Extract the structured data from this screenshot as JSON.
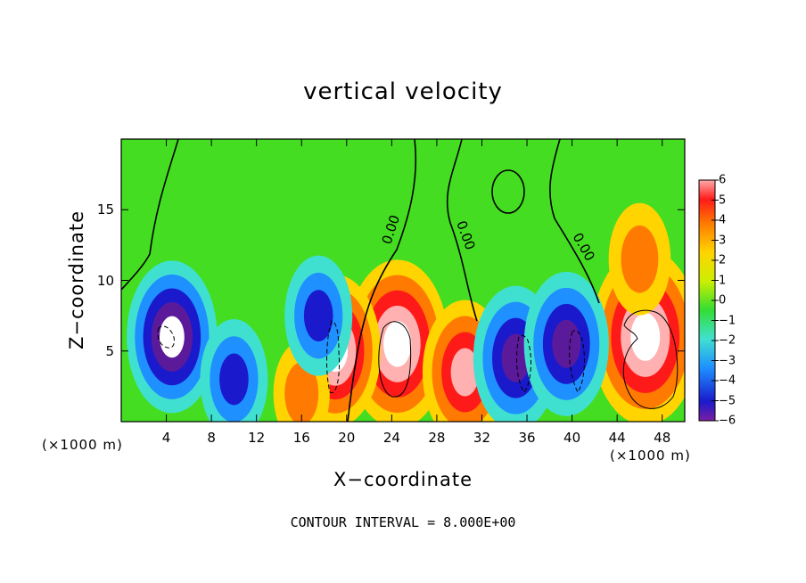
{
  "chart_data": {
    "type": "heatmap",
    "title": "vertical velocity",
    "xlabel": "X−coordinate",
    "ylabel": "Z−coordinate",
    "x_unit": "(×1000 m)",
    "xlim": [
      0,
      50
    ],
    "ylim": [
      0,
      20
    ],
    "x_ticks": [
      "4",
      "8",
      "12",
      "16",
      "20",
      "24",
      "28",
      "32",
      "36",
      "40",
      "44",
      "48"
    ],
    "y_ticks": [
      "5",
      "10",
      "15"
    ],
    "colorbar": {
      "ticks": [
        "6",
        "5",
        "4",
        "3",
        "2",
        "1",
        "0",
        "−1",
        "−2",
        "−3",
        "−4",
        "−5",
        "−6"
      ],
      "range": [
        -6,
        6
      ]
    },
    "contour_label": "0.00",
    "contour_interval_text": "CONTOUR INTERVAL = 8.000E+00",
    "features": [
      {
        "x": 24.5,
        "z": 5.5,
        "w": 11
      },
      {
        "x": 19.0,
        "z": 5.0,
        "w": 9
      },
      {
        "x": 30.5,
        "z": 3.5,
        "w": 8
      },
      {
        "x": 46.5,
        "z": 6.0,
        "w": 12
      },
      {
        "x": 46.0,
        "z": 11.5,
        "w": 4
      },
      {
        "x": 4.5,
        "z": 6.0,
        "w": -9
      },
      {
        "x": 35.0,
        "z": 4.5,
        "w": -8
      },
      {
        "x": 39.5,
        "z": 5.5,
        "w": -8
      },
      {
        "x": 10.0,
        "z": 3.0,
        "w": -5
      },
      {
        "x": 16.0,
        "z": 2.0,
        "w": 3
      },
      {
        "x": 17.5,
        "z": 7.5,
        "w": -5
      }
    ]
  }
}
